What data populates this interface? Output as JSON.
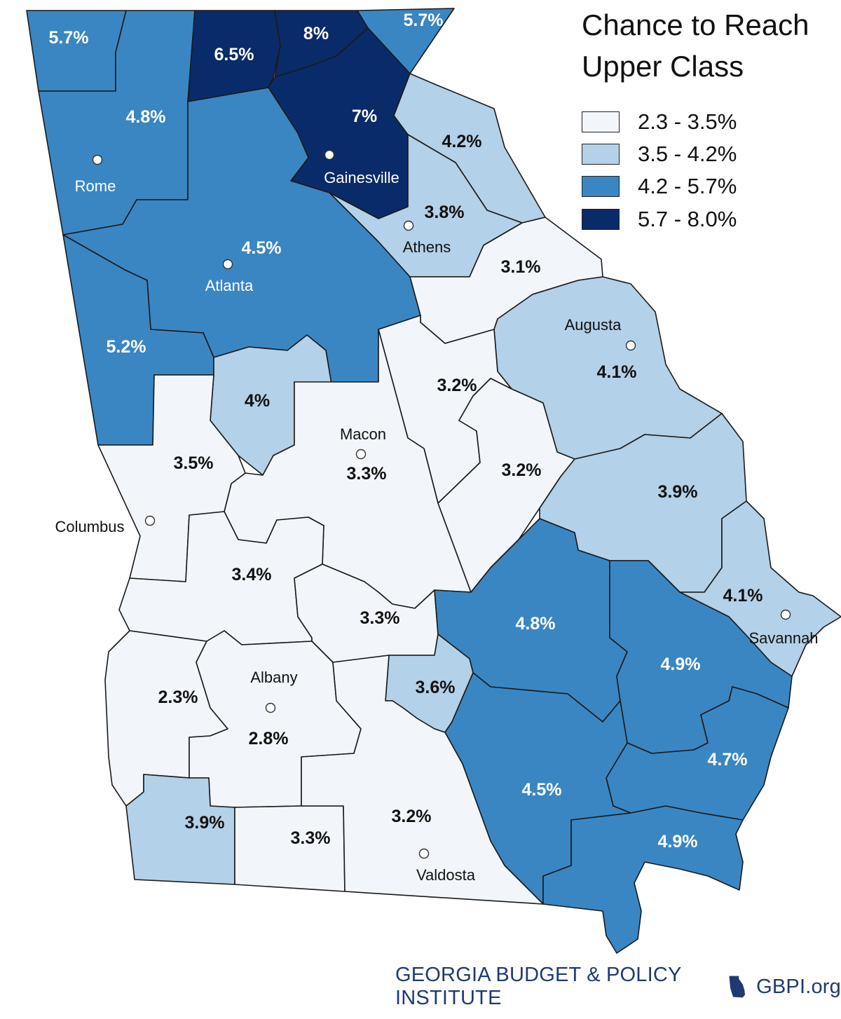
{
  "title": "Chance to Reach Upper Class",
  "title_lines": [
    "Chance to Reach",
    "Upper Class"
  ],
  "colors": {
    "bin1": "#f2f6fb",
    "bin2": "#b3d1e8",
    "bin3": "#3a86c3",
    "bin4": "#0a2b69",
    "label_dark": "#111111",
    "label_light": "#ffffff",
    "footer": "#1f3a72"
  },
  "legend": [
    {
      "label": "2.3 - 3.5%",
      "color": "#f2f6fb"
    },
    {
      "label": "3.5 - 4.2%",
      "color": "#b3d1e8"
    },
    {
      "label": "4.2 - 5.7%",
      "color": "#3a86c3"
    },
    {
      "label": "5.7 - 8.0%",
      "color": "#0a2b69"
    }
  ],
  "regions": [
    {
      "id": "nw-corner",
      "value": "5.7%",
      "bin": 3
    },
    {
      "id": "north-central-w",
      "value": "6.5%",
      "bin": 4
    },
    {
      "id": "north-central-e",
      "value": "8%",
      "bin": 4
    },
    {
      "id": "ne-corner",
      "value": "5.7%",
      "bin": 3
    },
    {
      "id": "rome",
      "value": "4.8%",
      "bin": 3
    },
    {
      "id": "gainesville",
      "value": "7%",
      "bin": 4
    },
    {
      "id": "ne-4-2",
      "value": "4.2%",
      "bin": 2
    },
    {
      "id": "athens",
      "value": "3.8%",
      "bin": 2
    },
    {
      "id": "atlanta",
      "value": "4.5%",
      "bin": 3
    },
    {
      "id": "e-3-1",
      "value": "3.1%",
      "bin": 1
    },
    {
      "id": "west-5-2",
      "value": "5.2%",
      "bin": 3
    },
    {
      "id": "augusta",
      "value": "4.1%",
      "bin": 2
    },
    {
      "id": "central-4",
      "value": "4%",
      "bin": 2
    },
    {
      "id": "central-3-2-n",
      "value": "3.2%",
      "bin": 1
    },
    {
      "id": "macon",
      "value": "3.3%",
      "bin": 1
    },
    {
      "id": "columbus",
      "value": "3.5%",
      "bin": 1
    },
    {
      "id": "central-3-2-e",
      "value": "3.2%",
      "bin": 1
    },
    {
      "id": "se-3-9",
      "value": "3.9%",
      "bin": 2
    },
    {
      "id": "sw-3-4",
      "value": "3.4%",
      "bin": 1
    },
    {
      "id": "savannah",
      "value": "4.1%",
      "bin": 2
    },
    {
      "id": "s-central-3-3",
      "value": "3.3%",
      "bin": 1
    },
    {
      "id": "se-4-8",
      "value": "4.8%",
      "bin": 3
    },
    {
      "id": "coast-4-9-n",
      "value": "4.9%",
      "bin": 3
    },
    {
      "id": "sw-2-3",
      "value": "2.3%",
      "bin": 1
    },
    {
      "id": "albany",
      "value": "2.8%",
      "bin": 1
    },
    {
      "id": "s-3-6",
      "value": "3.6%",
      "bin": 2
    },
    {
      "id": "coast-4-7",
      "value": "4.7%",
      "bin": 3
    },
    {
      "id": "s-4-5",
      "value": "4.5%",
      "bin": 3
    },
    {
      "id": "sw-3-9",
      "value": "3.9%",
      "bin": 2
    },
    {
      "id": "s-3-3",
      "value": "3.3%",
      "bin": 1
    },
    {
      "id": "valdosta",
      "value": "3.2%",
      "bin": 1
    },
    {
      "id": "coast-4-9-s",
      "value": "4.9%",
      "bin": 3
    }
  ],
  "cities": [
    "Rome",
    "Gainesville",
    "Athens",
    "Atlanta",
    "Augusta",
    "Macon",
    "Columbus",
    "Savannah",
    "Albany",
    "Valdosta"
  ],
  "footer": {
    "org": "GEORGIA BUDGET & POLICY INSTITUTE",
    "site": "GBPI.org"
  }
}
